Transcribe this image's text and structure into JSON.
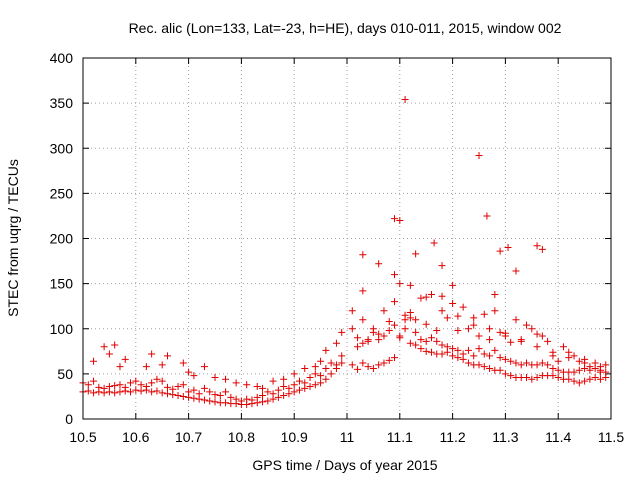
{
  "chart_data": {
    "type": "scatter",
    "title": "Rec. alic (Lon=133, Lat=-23, h=HE), days 010-011, 2015, window 002",
    "xlabel": "GPS time / Days of year 2015",
    "ylabel": "STEC from uqrg / TECUs",
    "xlim": [
      10.5,
      11.5
    ],
    "ylim": [
      0,
      400
    ],
    "xticks": [
      "10.5",
      "10.6",
      "10.7",
      "10.8",
      "10.9",
      "11",
      "11.1",
      "11.2",
      "11.3",
      "11.4",
      "11.5"
    ],
    "yticks": [
      "0",
      "50",
      "100",
      "150",
      "200",
      "250",
      "300",
      "350",
      "400"
    ],
    "grid": true,
    "marker": "+",
    "color": "#e00000",
    "series": [
      {
        "name": "STEC",
        "x": [
          10.5,
          10.51,
          10.52,
          10.53,
          10.54,
          10.55,
          10.56,
          10.57,
          10.58,
          10.59,
          10.6,
          10.61,
          10.62,
          10.63,
          10.64,
          10.65,
          10.66,
          10.67,
          10.68,
          10.69,
          10.7,
          10.71,
          10.72,
          10.73,
          10.74,
          10.75,
          10.76,
          10.77,
          10.78,
          10.79,
          10.8,
          10.81,
          10.82,
          10.83,
          10.84,
          10.85,
          10.86,
          10.87,
          10.88,
          10.89,
          10.9,
          10.91,
          10.92,
          10.93,
          10.94,
          10.95,
          10.96,
          10.97,
          10.98,
          10.99,
          10.5,
          10.51,
          10.52,
          10.53,
          10.54,
          10.55,
          10.56,
          10.57,
          10.58,
          10.59,
          10.6,
          10.61,
          10.62,
          10.63,
          10.64,
          10.65,
          10.66,
          10.67,
          10.68,
          10.69,
          10.7,
          10.71,
          10.72,
          10.73,
          10.74,
          10.75,
          10.76,
          10.77,
          10.78,
          10.79,
          10.8,
          10.81,
          10.82,
          10.83,
          10.84,
          10.85,
          10.86,
          10.87,
          10.88,
          10.89,
          10.9,
          10.91,
          10.92,
          10.93,
          10.94,
          10.95,
          10.96,
          10.97,
          10.98,
          10.99,
          10.52,
          10.54,
          10.55,
          10.56,
          10.57,
          10.58,
          10.62,
          10.63,
          10.65,
          10.66,
          10.69,
          10.7,
          10.71,
          10.73,
          10.75,
          10.77,
          10.79,
          10.81,
          10.83,
          10.84,
          10.86,
          10.88,
          10.9,
          10.92,
          10.94,
          10.95,
          10.96,
          10.98,
          10.99,
          11.01,
          11.02,
          11.03,
          11.04,
          11.05,
          11.06,
          11.07,
          11.08,
          11.09,
          11.1,
          11.11,
          11.12,
          11.13,
          11.14,
          11.15,
          11.16,
          11.17,
          11.18,
          11.19,
          11.2,
          11.21,
          11.22,
          11.23,
          11.24,
          11.25,
          11.26,
          11.27,
          11.28,
          11.29,
          11.3,
          11.31,
          11.32,
          11.33,
          11.34,
          11.35,
          11.36,
          11.37,
          11.38,
          11.39,
          11.4,
          11.41,
          11.42,
          11.43,
          11.44,
          11.45,
          11.46,
          11.47,
          11.48,
          11.49,
          11.01,
          11.02,
          11.03,
          11.04,
          11.05,
          11.06,
          11.07,
          11.08,
          11.09,
          11.1,
          11.11,
          11.12,
          11.13,
          11.14,
          11.15,
          11.16,
          11.17,
          11.18,
          11.19,
          11.2,
          11.21,
          11.22,
          11.23,
          11.24,
          11.25,
          11.26,
          11.27,
          11.28,
          11.29,
          11.3,
          11.31,
          11.32,
          11.33,
          11.34,
          11.35,
          11.36,
          11.37,
          11.38,
          11.39,
          11.4,
          11.41,
          11.42,
          11.43,
          11.44,
          11.45,
          11.46,
          11.47,
          11.48,
          11.49,
          11.01,
          11.03,
          11.05,
          11.07,
          11.09,
          11.11,
          11.13,
          11.15,
          11.17,
          11.19,
          11.21,
          11.23,
          11.25,
          11.27,
          11.29,
          11.31,
          11.33,
          11.35,
          11.37,
          11.39,
          11.41,
          11.43,
          11.45,
          11.47,
          11.49,
          11.02,
          11.04,
          11.06,
          11.08,
          11.1,
          11.12,
          11.14,
          11.16,
          11.18,
          11.2,
          11.22,
          11.24,
          11.26,
          11.28,
          11.3,
          11.32,
          11.34,
          11.36,
          11.38,
          11.4,
          11.42,
          11.44,
          11.46,
          11.48,
          11.03,
          11.06,
          11.09,
          11.12,
          11.15,
          11.18,
          11.21,
          11.24,
          11.27,
          11.3,
          11.33,
          11.36,
          11.39,
          11.42,
          11.45,
          11.48,
          11.11,
          11.25,
          11.265,
          11.09,
          11.1,
          11.165,
          11.29,
          11.305,
          11.36,
          11.13,
          11.18,
          11.2,
          11.32,
          11.37,
          11.28,
          11.03
        ],
        "y": [
          30,
          31,
          29,
          30,
          29,
          30,
          29,
          30,
          31,
          30,
          32,
          31,
          32,
          30,
          31,
          29,
          28,
          27,
          26,
          25,
          24,
          23,
          22,
          21,
          20,
          19,
          18,
          18,
          17,
          17,
          16,
          16,
          17,
          18,
          19,
          20,
          22,
          24,
          26,
          28,
          30,
          32,
          34,
          36,
          38,
          40,
          44,
          50,
          56,
          62,
          40,
          38,
          42,
          35,
          34,
          36,
          37,
          38,
          35,
          40,
          42,
          38,
          36,
          40,
          44,
          42,
          35,
          33,
          36,
          38,
          30,
          32,
          28,
          34,
          30,
          27,
          26,
          30,
          24,
          22,
          20,
          22,
          21,
          24,
          26,
          30,
          28,
          32,
          36,
          34,
          38,
          42,
          40,
          46,
          50,
          48,
          56,
          62,
          60,
          70,
          64,
          80,
          72,
          82,
          58,
          66,
          58,
          72,
          60,
          70,
          62,
          52,
          48,
          58,
          46,
          44,
          40,
          38,
          36,
          34,
          42,
          44,
          50,
          56,
          58,
          64,
          76,
          84,
          96,
          60,
          55,
          62,
          58,
          56,
          60,
          62,
          65,
          68,
          90,
          100,
          84,
          82,
          78,
          75,
          74,
          72,
          72,
          74,
          70,
          68,
          66,
          62,
          60,
          60,
          58,
          56,
          54,
          54,
          50,
          48,
          46,
          46,
          46,
          44,
          46,
          48,
          48,
          48,
          46,
          44,
          44,
          42,
          40,
          42,
          44,
          46,
          44,
          46,
          100,
          90,
          84,
          88,
          96,
          88,
          92,
          98,
          104,
          92,
          110,
          112,
          96,
          88,
          86,
          90,
          86,
          82,
          80,
          78,
          76,
          72,
          76,
          70,
          78,
          72,
          70,
          76,
          68,
          66,
          64,
          62,
          60,
          62,
          60,
          60,
          62,
          60,
          56,
          54,
          52,
          52,
          52,
          54,
          56,
          54,
          56,
          54,
          52,
          120,
          110,
          100,
          120,
          130,
          115,
          110,
          105,
          98,
          112,
          98,
          100,
          92,
          88,
          96,
          85,
          86,
          100,
          92,
          70,
          80,
          70,
          66,
          62,
          60,
          80,
          86,
          94,
          108,
          150,
          118,
          134,
          138,
          136,
          148,
          124,
          112,
          116,
          120,
          92,
          110,
          104,
          94,
          86,
          64,
          74,
          64,
          58,
          52,
          182,
          172,
          160,
          148,
          135,
          120,
          114,
          104,
          100,
          95,
          88,
          80,
          74,
          68,
          62,
          58,
          354,
          292,
          225,
          222,
          220,
          195,
          186,
          190,
          192,
          183,
          170,
          128,
          164,
          188,
          138,
          142
        ]
      }
    ]
  }
}
